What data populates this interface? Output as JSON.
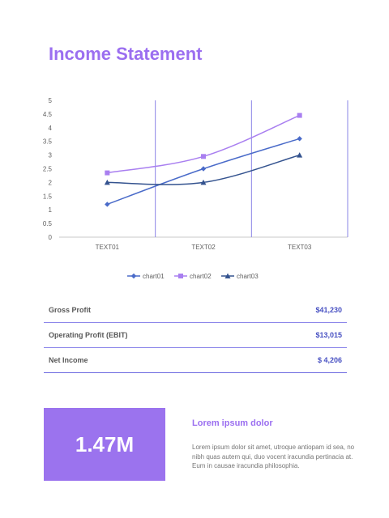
{
  "page": {
    "title": "Income Statement"
  },
  "chart_data": {
    "type": "line",
    "categories": [
      "TEXT01",
      "TEXT02",
      "TEXT03"
    ],
    "series": [
      {
        "name": "chart01",
        "values": [
          1.2,
          2.5,
          3.6
        ],
        "color": "#4a6bc9",
        "marker": "diamond"
      },
      {
        "name": "chart02",
        "values": [
          2.35,
          2.95,
          4.45
        ],
        "color": "#a97ff0",
        "marker": "square"
      },
      {
        "name": "chart03",
        "values": [
          2.0,
          2.0,
          3.0
        ],
        "color": "#34538f",
        "marker": "triangle"
      }
    ],
    "ylim": [
      0,
      5
    ],
    "yticks": [
      "0",
      "0.5",
      "1",
      "1.5",
      "2",
      "2.5",
      "3",
      "3.5",
      "4",
      "4.5",
      "5"
    ],
    "grid": "vertical",
    "legend": "bottom",
    "title": "",
    "xlabel": "",
    "ylabel": ""
  },
  "financials": [
    {
      "label": "Gross Profit",
      "value": "$41,230"
    },
    {
      "label": "Operating Profit (EBIT)",
      "value": "$13,015"
    },
    {
      "label": "Net Income",
      "value": "$ 4,206"
    }
  ],
  "kpi": {
    "value": "1.47M"
  },
  "info": {
    "title": "Lorem ipsum dolor",
    "body": "Lorem ipsum dolor sit amet, utroque antiopam id sea, no nibh quas autem qui, duo vocent iracundia pertinacia at. Eum in causae iracundia philosophia."
  }
}
